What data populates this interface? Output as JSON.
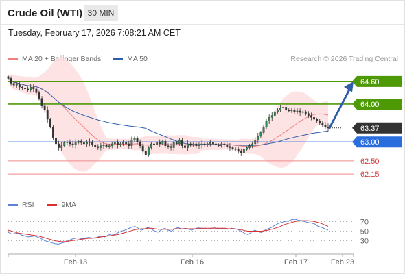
{
  "header": {
    "instrument": "Crude Oil (WTI)",
    "timeframe": "30 MIN"
  },
  "datetime": "Tuesday, February 17, 2026 7:08:21 AM CET",
  "legend": {
    "ma20": "MA 20 + Bollinger Bands",
    "ma50": "MA 50",
    "copyright": "Research © 2026 Trading Central"
  },
  "rsi_legend": {
    "rsi": "RSI",
    "ma9": "9MA"
  },
  "colors": {
    "ma20": "#f08080",
    "ma50": "#2f5ea8",
    "band_fill": "#fde0e0",
    "resistance": "#4e9a06",
    "pivot": "#2a6ddc",
    "support": "#f08a8a",
    "last_price": "#333333",
    "candle": "#e05050",
    "rsi": "#5a82d8",
    "rsi_ma": "#d93030",
    "arrow": "#2f5ea8"
  },
  "chart_data": [
    {
      "type": "candlestick",
      "title": "Crude Oil (WTI)",
      "timeframe": "30 MIN",
      "x_ticks": [
        "Feb 13",
        "Feb 16",
        "Feb 17",
        "Feb 23"
      ],
      "ylim": [
        61.9,
        64.85
      ],
      "last_price": 63.37,
      "levels": [
        {
          "value": 64.6,
          "label": "64.60",
          "kind": "resistance"
        },
        {
          "value": 64.0,
          "label": "64.00",
          "kind": "resistance"
        },
        {
          "value": 63.37,
          "label": "63.37",
          "kind": "last"
        },
        {
          "value": 63.0,
          "label": "63.00",
          "kind": "pivot"
        },
        {
          "value": 62.5,
          "label": "62.50",
          "kind": "support"
        },
        {
          "value": 62.15,
          "label": "62.15",
          "kind": "support"
        }
      ],
      "forecast_arrow": {
        "from": 63.37,
        "to": 64.6
      },
      "close": [
        64.68,
        64.55,
        64.5,
        64.52,
        64.45,
        64.42,
        64.4,
        64.38,
        64.45,
        64.4,
        64.3,
        64.15,
        63.95,
        63.85,
        63.6,
        63.4,
        63.1,
        62.95,
        62.85,
        62.9,
        62.98,
        63.0,
        62.95,
        62.92,
        62.98,
        63.02,
        62.98,
        62.95,
        62.98,
        63.0,
        62.92,
        62.88,
        62.85,
        62.9,
        62.92,
        62.88,
        62.9,
        62.95,
        62.98,
        62.92,
        62.95,
        63.0,
        62.95,
        62.9,
        63.05,
        63.1,
        63.0,
        62.9,
        62.75,
        62.65,
        62.85,
        62.95,
        62.92,
        62.98,
        62.95,
        63.02,
        62.9,
        62.88,
        62.85,
        62.98,
        62.95,
        63.05,
        62.9,
        62.85,
        62.95,
        62.92,
        62.95,
        62.9,
        62.92,
        62.95,
        62.92,
        62.95,
        62.98,
        62.95,
        62.92,
        62.9,
        62.95,
        62.92,
        62.88,
        62.85,
        62.82,
        62.8,
        62.75,
        62.7,
        62.8,
        62.85,
        62.9,
        62.95,
        63.05,
        63.15,
        63.25,
        63.4,
        63.55,
        63.65,
        63.7,
        63.8,
        63.85,
        63.9,
        63.92,
        63.85,
        63.82,
        63.85,
        63.8,
        63.82,
        63.78,
        63.8,
        63.75,
        63.7,
        63.65,
        63.6,
        63.55,
        63.5,
        63.45,
        63.4,
        63.37
      ]
    },
    {
      "type": "line",
      "title": "RSI",
      "series": [
        {
          "name": "RSI"
        },
        {
          "name": "9MA"
        }
      ],
      "yticks": [
        70,
        50,
        30
      ],
      "ylim": [
        15,
        85
      ],
      "rsi": [
        48,
        44,
        45,
        46,
        42,
        40,
        38,
        39,
        40,
        37,
        34,
        30,
        28,
        26,
        24,
        23,
        25,
        27,
        30,
        33,
        35,
        36,
        34,
        35,
        37,
        36,
        35,
        38,
        40,
        38,
        42,
        44,
        43,
        47,
        50,
        52,
        55,
        58,
        60,
        56,
        52,
        55,
        58,
        54,
        50,
        48,
        53,
        56,
        52,
        50,
        55,
        58,
        54,
        56,
        55,
        52,
        55,
        57,
        56,
        55,
        54,
        56,
        57,
        55,
        56,
        55,
        54,
        56,
        55,
        53,
        50,
        45,
        43,
        48,
        52,
        49,
        47,
        52,
        55,
        58,
        62,
        66,
        68,
        70,
        71,
        74,
        75,
        73,
        72,
        70,
        68,
        67,
        65,
        60,
        58,
        55,
        52
      ],
      "rsi_ma": [
        52,
        50,
        48,
        46,
        45,
        44,
        43,
        42,
        41,
        40,
        38,
        36,
        34,
        32,
        30,
        29,
        28,
        28,
        29,
        30,
        31,
        32,
        33,
        34,
        35,
        35,
        36,
        37,
        38,
        39,
        40,
        41,
        42,
        43,
        45,
        47,
        49,
        51,
        53,
        54,
        55,
        55,
        56,
        56,
        55,
        54,
        54,
        54,
        54,
        54,
        55,
        55,
        55,
        55,
        55,
        55,
        55,
        55,
        56,
        56,
        56,
        56,
        56,
        56,
        56,
        56,
        55,
        55,
        55,
        54,
        53,
        51,
        50,
        50,
        50,
        50,
        50,
        51,
        52,
        54,
        56,
        58,
        61,
        64,
        66,
        68,
        70,
        71,
        72,
        72,
        72,
        71,
        70,
        68,
        66,
        63,
        60
      ]
    }
  ]
}
